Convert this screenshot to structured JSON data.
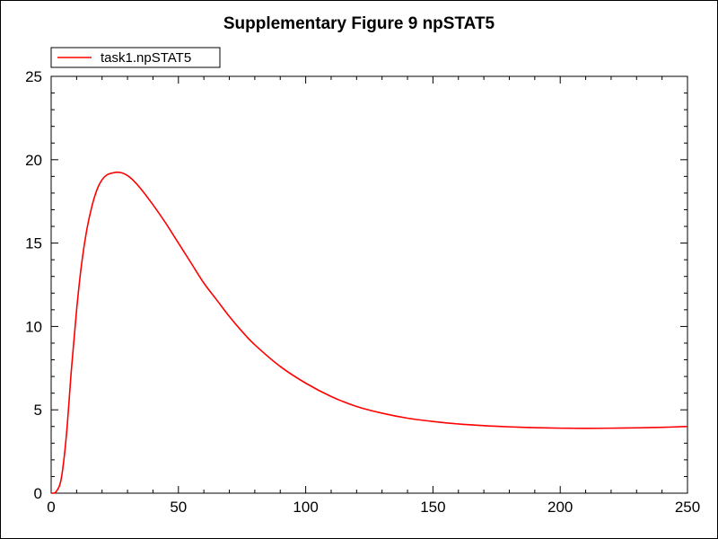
{
  "chart_data": {
    "type": "line",
    "title": "Supplementary Figure 9 npSTAT5",
    "xlabel": "",
    "ylabel": "",
    "xlim": [
      0,
      250
    ],
    "ylim": [
      0,
      25
    ],
    "x_ticks": [
      0,
      50,
      100,
      150,
      200,
      250
    ],
    "y_ticks": [
      0,
      5,
      10,
      15,
      20,
      25
    ],
    "grid": false,
    "legend_position": "top-left",
    "series": [
      {
        "name": "task1.npSTAT5",
        "color": "#ff0000",
        "x": [
          0,
          2,
          4,
          6,
          8,
          10,
          12,
          14,
          16,
          18,
          20,
          22,
          24,
          26,
          28,
          30,
          32,
          35,
          40,
          45,
          50,
          55,
          60,
          65,
          70,
          75,
          80,
          90,
          100,
          110,
          120,
          130,
          140,
          150,
          160,
          170,
          180,
          190,
          200,
          210,
          220,
          230,
          240,
          250
        ],
        "y": [
          0,
          0.1,
          0.9,
          3.5,
          7.5,
          11.0,
          13.8,
          15.8,
          17.2,
          18.2,
          18.8,
          19.1,
          19.2,
          19.25,
          19.2,
          19.05,
          18.8,
          18.3,
          17.3,
          16.2,
          15.0,
          13.8,
          12.6,
          11.6,
          10.6,
          9.7,
          8.9,
          7.6,
          6.6,
          5.8,
          5.2,
          4.8,
          4.5,
          4.3,
          4.15,
          4.05,
          3.98,
          3.93,
          3.9,
          3.89,
          3.9,
          3.92,
          3.95,
          4.0
        ]
      }
    ]
  }
}
